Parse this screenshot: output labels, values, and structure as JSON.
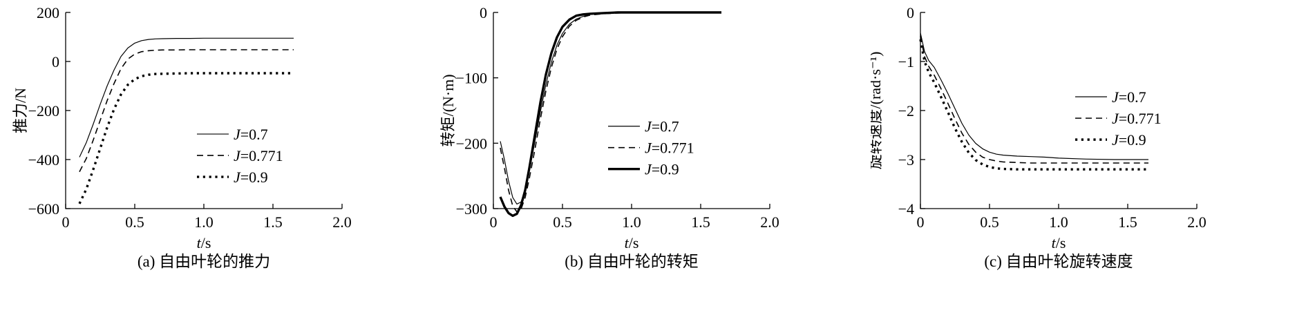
{
  "chart_data": [
    {
      "type": "line",
      "caption": "(a) 自由叶轮的推力",
      "xlabel": "t/s",
      "ylabel": "推力/N",
      "xlim": [
        0,
        2.0
      ],
      "ylim": [
        -600,
        200
      ],
      "xticks": [
        0,
        0.5,
        1.0,
        1.5,
        2.0
      ],
      "xtick_labels": [
        "0",
        "0.5",
        "1.0",
        "1.5",
        "2.0"
      ],
      "yticks": [
        200,
        0,
        -200,
        -400,
        -600
      ],
      "ytick_labels": [
        "200",
        "0",
        "−200",
        "−400",
        "−600"
      ],
      "grid": false,
      "legend_pos": [
        0.475,
        0.62
      ],
      "series": [
        {
          "name": "J=0.7",
          "style": "solid-thin",
          "x": [
            0.1,
            0.15,
            0.2,
            0.25,
            0.3,
            0.35,
            0.4,
            0.45,
            0.5,
            0.55,
            0.6,
            0.65,
            0.7,
            0.8,
            0.9,
            1.0,
            1.1,
            1.2,
            1.3,
            1.4,
            1.5,
            1.6,
            1.65
          ],
          "y": [
            -390,
            -330,
            -255,
            -175,
            -100,
            -35,
            20,
            55,
            75,
            85,
            90,
            92,
            93,
            94,
            94,
            95,
            95,
            95,
            95,
            95,
            95,
            95,
            95
          ]
        },
        {
          "name": "J=0.771",
          "style": "dashed",
          "x": [
            0.1,
            0.15,
            0.2,
            0.25,
            0.3,
            0.35,
            0.4,
            0.45,
            0.5,
            0.55,
            0.6,
            0.65,
            0.7,
            0.8,
            0.9,
            1.0,
            1.1,
            1.2,
            1.3,
            1.4,
            1.5,
            1.6,
            1.65
          ],
          "y": [
            -450,
            -395,
            -320,
            -240,
            -160,
            -90,
            -30,
            10,
            30,
            40,
            44,
            46,
            47,
            47,
            48,
            48,
            48,
            48,
            48,
            48,
            48,
            48,
            48
          ]
        },
        {
          "name": "J=0.9",
          "style": "dotted-bold",
          "x": [
            0.1,
            0.15,
            0.2,
            0.25,
            0.3,
            0.35,
            0.4,
            0.45,
            0.5,
            0.55,
            0.6,
            0.65,
            0.7,
            0.8,
            0.9,
            1.0,
            1.1,
            1.2,
            1.3,
            1.4,
            1.5,
            1.6,
            1.65
          ],
          "y": [
            -580,
            -520,
            -440,
            -355,
            -270,
            -195,
            -135,
            -95,
            -72,
            -60,
            -54,
            -51,
            -50,
            -49,
            -48,
            -48,
            -48,
            -48,
            -48,
            -48,
            -48,
            -48,
            -48
          ]
        }
      ]
    },
    {
      "type": "line",
      "caption": "(b) 自由叶轮的转矩",
      "xlabel": "t/s",
      "ylabel": "转矩/(N·m)",
      "xlim": [
        0,
        2.0
      ],
      "ylim": [
        -300,
        0
      ],
      "xticks": [
        0,
        0.5,
        1.0,
        1.5,
        2.0
      ],
      "xtick_labels": [
        "0",
        "0.5",
        "1.0",
        "1.5",
        "2.0"
      ],
      "yticks": [
        0,
        -100,
        -200,
        -300
      ],
      "ytick_labels": [
        "0",
        "−100",
        "−200",
        "−300"
      ],
      "grid": false,
      "legend_pos": [
        0.415,
        0.58
      ],
      "series": [
        {
          "name": "J=0.7",
          "style": "solid-thin",
          "x": [
            0.05,
            0.08,
            0.11,
            0.14,
            0.17,
            0.2,
            0.23,
            0.26,
            0.3,
            0.34,
            0.38,
            0.42,
            0.46,
            0.5,
            0.55,
            0.6,
            0.65,
            0.7,
            0.8,
            0.9,
            1.0,
            1.2,
            1.4,
            1.65
          ],
          "y": [
            -197,
            -225,
            -258,
            -283,
            -293,
            -290,
            -272,
            -243,
            -198,
            -152,
            -110,
            -76,
            -50,
            -32,
            -18,
            -10,
            -6,
            -3,
            -1,
            -1,
            0,
            0,
            0,
            0
          ]
        },
        {
          "name": "J=0.771",
          "style": "dashed",
          "x": [
            0.05,
            0.08,
            0.11,
            0.14,
            0.17,
            0.2,
            0.23,
            0.26,
            0.3,
            0.34,
            0.38,
            0.42,
            0.46,
            0.5,
            0.55,
            0.6,
            0.65,
            0.7,
            0.8,
            0.9,
            1.0,
            1.2,
            1.4,
            1.65
          ],
          "y": [
            -207,
            -238,
            -272,
            -296,
            -305,
            -301,
            -283,
            -254,
            -210,
            -163,
            -120,
            -84,
            -56,
            -37,
            -21,
            -12,
            -7,
            -4,
            -2,
            -1,
            0,
            0,
            0,
            0
          ]
        },
        {
          "name": "J=0.9",
          "style": "solid-bold",
          "x": [
            0.05,
            0.08,
            0.11,
            0.14,
            0.17,
            0.2,
            0.23,
            0.26,
            0.3,
            0.34,
            0.38,
            0.42,
            0.46,
            0.5,
            0.55,
            0.6,
            0.65,
            0.7,
            0.8,
            0.9,
            1.0,
            1.2,
            1.4,
            1.65
          ],
          "y": [
            -282,
            -297,
            -307,
            -311,
            -308,
            -295,
            -272,
            -238,
            -188,
            -138,
            -95,
            -62,
            -38,
            -22,
            -11,
            -5,
            -3,
            -2,
            -1,
            0,
            0,
            0,
            0,
            0
          ]
        }
      ]
    },
    {
      "type": "line",
      "caption": "(c) 自由叶轮旋转速度",
      "xlabel": "t/s",
      "ylabel": "旋转速度/(rad·s⁻¹)",
      "xlim": [
        0,
        2.0
      ],
      "ylim": [
        -4,
        0
      ],
      "xticks": [
        0,
        0.5,
        1.0,
        1.5,
        2.0
      ],
      "xtick_labels": [
        "0",
        "0.5",
        "1.0",
        "1.5",
        "2.0"
      ],
      "yticks": [
        0,
        -1,
        -2,
        -3,
        -4
      ],
      "ytick_labels": [
        "0",
        "−1",
        "−2",
        "−3",
        "−4"
      ],
      "grid": false,
      "legend_pos": [
        0.56,
        0.43
      ],
      "series": [
        {
          "name": "J=0.7",
          "style": "solid-thin",
          "x": [
            0,
            0.03,
            0.06,
            0.1,
            0.15,
            0.2,
            0.25,
            0.3,
            0.35,
            0.4,
            0.45,
            0.5,
            0.55,
            0.6,
            0.7,
            0.8,
            0.9,
            1.0,
            1.2,
            1.4,
            1.65
          ],
          "y": [
            -0.42,
            -0.8,
            -0.98,
            -1.12,
            -1.38,
            -1.66,
            -1.96,
            -2.26,
            -2.5,
            -2.67,
            -2.78,
            -2.85,
            -2.89,
            -2.91,
            -2.93,
            -2.94,
            -2.95,
            -2.97,
            -2.99,
            -3.0,
            -3.0
          ]
        },
        {
          "name": "J=0.771",
          "style": "dashed",
          "x": [
            0,
            0.03,
            0.06,
            0.1,
            0.15,
            0.2,
            0.25,
            0.3,
            0.35,
            0.4,
            0.45,
            0.5,
            0.55,
            0.6,
            0.7,
            0.8,
            0.9,
            1.0,
            1.2,
            1.4,
            1.65
          ],
          "y": [
            -0.48,
            -0.9,
            -1.1,
            -1.28,
            -1.56,
            -1.86,
            -2.17,
            -2.46,
            -2.69,
            -2.85,
            -2.95,
            -3.0,
            -3.03,
            -3.05,
            -3.06,
            -3.07,
            -3.07,
            -3.07,
            -3.07,
            -3.07,
            -3.07
          ]
        },
        {
          "name": "J=0.9",
          "style": "dotted-bold",
          "x": [
            0,
            0.03,
            0.06,
            0.1,
            0.15,
            0.2,
            0.25,
            0.3,
            0.35,
            0.4,
            0.45,
            0.5,
            0.55,
            0.6,
            0.7,
            0.8,
            0.9,
            1.0,
            1.2,
            1.4,
            1.65
          ],
          "y": [
            -0.55,
            -1.0,
            -1.22,
            -1.43,
            -1.73,
            -2.04,
            -2.36,
            -2.64,
            -2.86,
            -3.01,
            -3.1,
            -3.15,
            -3.18,
            -3.19,
            -3.2,
            -3.2,
            -3.2,
            -3.2,
            -3.2,
            -3.2,
            -3.2
          ]
        }
      ]
    }
  ],
  "colors": {
    "line": "#000000",
    "background": "#ffffff"
  }
}
